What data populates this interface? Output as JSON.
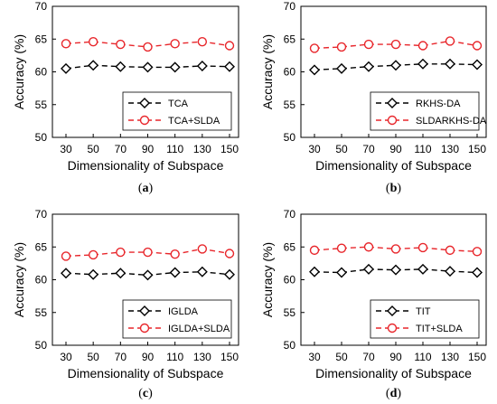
{
  "chart_data": [
    {
      "type": "line",
      "caption_letter": "a",
      "x": [
        30,
        50,
        70,
        90,
        110,
        130,
        150
      ],
      "xlabel": "Dimensionality of Subspace",
      "ylabel": "Accuracy (%)",
      "ylim": [
        50,
        70
      ],
      "yticks": [
        50,
        55,
        60,
        65,
        70
      ],
      "legend_position": "bottom-right",
      "grid": false,
      "series": [
        {
          "name": "TCA",
          "color": "#000000",
          "marker": "diamond",
          "values": [
            60.5,
            61.0,
            60.8,
            60.7,
            60.7,
            60.9,
            60.8
          ]
        },
        {
          "name": "TCA+SLDA",
          "color": "#e8262b",
          "marker": "circle",
          "values": [
            64.3,
            64.6,
            64.2,
            63.8,
            64.3,
            64.6,
            64.0
          ]
        }
      ]
    },
    {
      "type": "line",
      "caption_letter": "b",
      "x": [
        30,
        50,
        70,
        90,
        110,
        130,
        150
      ],
      "xlabel": "Dimensionality of Subspace",
      "ylabel": "Accuracy (%)",
      "ylim": [
        50,
        70
      ],
      "yticks": [
        50,
        55,
        60,
        65,
        70
      ],
      "legend_position": "bottom-right",
      "grid": false,
      "series": [
        {
          "name": "RKHS-DA",
          "color": "#000000",
          "marker": "diamond",
          "values": [
            60.3,
            60.5,
            60.8,
            61.0,
            61.2,
            61.2,
            61.1
          ]
        },
        {
          "name": "SLDARKHS-DA",
          "color": "#e8262b",
          "marker": "circle",
          "values": [
            63.6,
            63.8,
            64.2,
            64.2,
            64.0,
            64.7,
            64.0
          ]
        }
      ]
    },
    {
      "type": "line",
      "caption_letter": "c",
      "x": [
        30,
        50,
        70,
        90,
        110,
        130,
        150
      ],
      "xlabel": "Dimensionality of Subspace",
      "ylabel": "Accuracy (%)",
      "ylim": [
        50,
        70
      ],
      "yticks": [
        50,
        55,
        60,
        65,
        70
      ],
      "legend_position": "bottom-right",
      "grid": false,
      "series": [
        {
          "name": "IGLDA",
          "color": "#000000",
          "marker": "diamond",
          "values": [
            61.0,
            60.8,
            61.0,
            60.7,
            61.1,
            61.2,
            60.8
          ]
        },
        {
          "name": "IGLDA+SLDA",
          "color": "#e8262b",
          "marker": "circle",
          "values": [
            63.6,
            63.8,
            64.2,
            64.2,
            63.9,
            64.7,
            64.0
          ]
        }
      ]
    },
    {
      "type": "line",
      "caption_letter": "d",
      "x": [
        30,
        50,
        70,
        90,
        110,
        130,
        150
      ],
      "xlabel": "Dimensionality of Subspace",
      "ylabel": "Accuracy (%)",
      "ylim": [
        50,
        70
      ],
      "yticks": [
        50,
        55,
        60,
        65,
        70
      ],
      "legend_position": "bottom-right",
      "grid": false,
      "series": [
        {
          "name": "TIT",
          "color": "#000000",
          "marker": "diamond",
          "values": [
            61.2,
            61.1,
            61.6,
            61.5,
            61.6,
            61.3,
            61.1
          ]
        },
        {
          "name": "TIT+SLDA",
          "color": "#e8262b",
          "marker": "circle",
          "values": [
            64.5,
            64.8,
            65.0,
            64.7,
            64.9,
            64.5,
            64.3
          ]
        }
      ]
    }
  ]
}
